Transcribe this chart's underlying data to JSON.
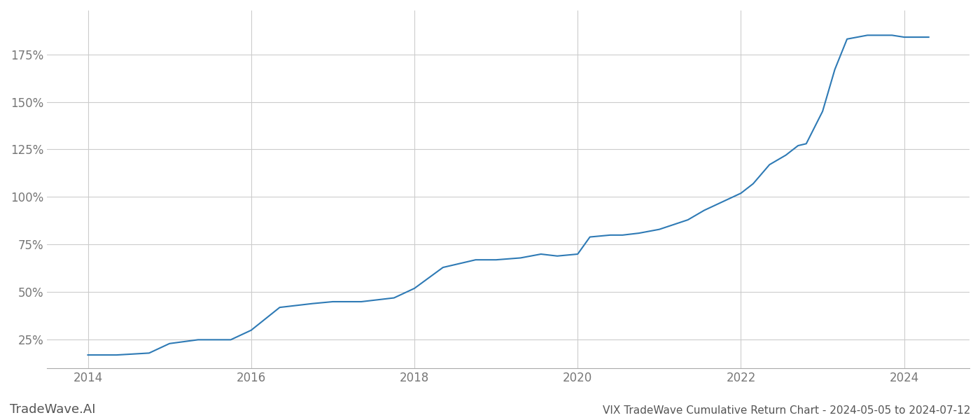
{
  "title": "VIX TradeWave Cumulative Return Chart - 2024-05-05 to 2024-07-12",
  "watermark": "TradeWave.AI",
  "line_color": "#2e7ab5",
  "background_color": "#ffffff",
  "grid_color": "#cccccc",
  "x_years": [
    2014.0,
    2014.35,
    2014.75,
    2015.0,
    2015.35,
    2015.75,
    2016.0,
    2016.35,
    2016.75,
    2017.0,
    2017.35,
    2017.55,
    2017.75,
    2018.0,
    2018.35,
    2018.55,
    2018.75,
    2019.0,
    2019.3,
    2019.55,
    2019.75,
    2020.0,
    2020.15,
    2020.4,
    2020.55,
    2020.75,
    2021.0,
    2021.35,
    2021.55,
    2021.75,
    2022.0,
    2022.15,
    2022.35,
    2022.55,
    2022.7,
    2022.8,
    2023.0,
    2023.15,
    2023.3,
    2023.55,
    2023.7,
    2023.85,
    2024.0,
    2024.3
  ],
  "y_values": [
    17,
    17,
    18,
    23,
    25,
    25,
    30,
    42,
    44,
    45,
    45,
    46,
    47,
    52,
    63,
    65,
    67,
    67,
    68,
    70,
    69,
    70,
    79,
    80,
    80,
    81,
    83,
    88,
    93,
    97,
    102,
    107,
    117,
    122,
    127,
    128,
    145,
    167,
    183,
    185,
    185,
    185,
    184,
    184
  ],
  "xlim": [
    2013.5,
    2024.8
  ],
  "ylim": [
    10,
    198
  ],
  "yticks": [
    25,
    50,
    75,
    100,
    125,
    150,
    175
  ],
  "ytick_labels": [
    "25%",
    "50%",
    "75%",
    "100%",
    "125%",
    "150%",
    "175%"
  ],
  "xticks": [
    2014,
    2016,
    2018,
    2020,
    2022,
    2024
  ],
  "xtick_labels": [
    "2014",
    "2016",
    "2018",
    "2020",
    "2022",
    "2024"
  ],
  "title_fontsize": 11,
  "watermark_fontsize": 13,
  "tick_fontsize": 12,
  "line_width": 1.5
}
